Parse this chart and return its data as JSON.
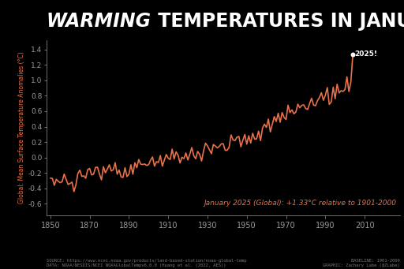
{
  "title_italic": "WARMING",
  "title_rest": " TEMPERATURES IN JANUARY",
  "ylabel": "Global: Mean Surface Temperature Anomalies (°C)",
  "xlabel_years": [
    1850,
    1870,
    1890,
    1910,
    1930,
    1950,
    1970,
    1990,
    2010
  ],
  "yticks": [
    -0.6,
    -0.4,
    -0.2,
    0.0,
    0.2,
    0.4,
    0.6,
    0.8,
    1.0,
    1.2,
    1.4
  ],
  "ylim": [
    -0.75,
    1.52
  ],
  "xlim": [
    1848,
    2028
  ],
  "annotation": "January 2025 (Global): +1.33°C relative to 1901-2000",
  "label_2025": "2025!",
  "source_line1": "SOURCE: https://www.ncei.noaa.gov/products/land-based-station/noaa-global-temp",
  "source_line2": "DATA: NOAA/NESDIS/NCEI NOAAGlobalTempv6.0.0 (Huang et al. (2022, AES))",
  "baseline_line1": "BASELINE: 1901-2000",
  "baseline_line2": "GRAPHIC: Zachary Labe (@ZLabe)",
  "line_color": "#E8724A",
  "dot_color": "#FFFFFF",
  "annotation_color": "#E8724A",
  "bg_color": "#000000",
  "text_color": "#FFFFFF",
  "axis_color": "#999999",
  "anomalies": [
    -0.268,
    -0.273,
    -0.362,
    -0.284,
    -0.309,
    -0.328,
    -0.314,
    -0.216,
    -0.283,
    -0.351,
    -0.339,
    -0.32,
    -0.443,
    -0.356,
    -0.208,
    -0.165,
    -0.246,
    -0.239,
    -0.27,
    -0.159,
    -0.143,
    -0.227,
    -0.216,
    -0.129,
    -0.127,
    -0.216,
    -0.291,
    -0.121,
    -0.199,
    -0.151,
    -0.096,
    -0.176,
    -0.16,
    -0.068,
    -0.218,
    -0.163,
    -0.252,
    -0.26,
    -0.133,
    -0.249,
    -0.216,
    -0.096,
    -0.218,
    -0.069,
    -0.133,
    -0.027,
    -0.088,
    -0.092,
    -0.085,
    -0.104,
    -0.094,
    -0.038,
    0.006,
    -0.113,
    -0.055,
    -0.066,
    0.025,
    -0.113,
    -0.038,
    0.038,
    -0.01,
    -0.028,
    0.108,
    -0.02,
    0.073,
    0.03,
    -0.072,
    0.002,
    -0.015,
    0.058,
    -0.033,
    0.043,
    0.128,
    0.022,
    -0.017,
    0.078,
    0.041,
    -0.046,
    0.086,
    0.185,
    0.15,
    0.099,
    0.049,
    0.168,
    0.148,
    0.124,
    0.143,
    0.176,
    0.178,
    0.092,
    0.093,
    0.131,
    0.292,
    0.228,
    0.219,
    0.263,
    0.272,
    0.139,
    0.223,
    0.298,
    0.172,
    0.281,
    0.187,
    0.313,
    0.238,
    0.241,
    0.342,
    0.218,
    0.379,
    0.432,
    0.39,
    0.498,
    0.332,
    0.432,
    0.53,
    0.467,
    0.574,
    0.456,
    0.582,
    0.52,
    0.492,
    0.678,
    0.583,
    0.617,
    0.567,
    0.589,
    0.692,
    0.645,
    0.676,
    0.682,
    0.635,
    0.623,
    0.7,
    0.768,
    0.68,
    0.671,
    0.737,
    0.779,
    0.84,
    0.742,
    0.806,
    0.907,
    0.688,
    0.719,
    0.912,
    0.762,
    0.95,
    0.838,
    0.866,
    0.857,
    0.881,
    1.047,
    0.856,
    0.981,
    1.333
  ],
  "start_year": 1850
}
